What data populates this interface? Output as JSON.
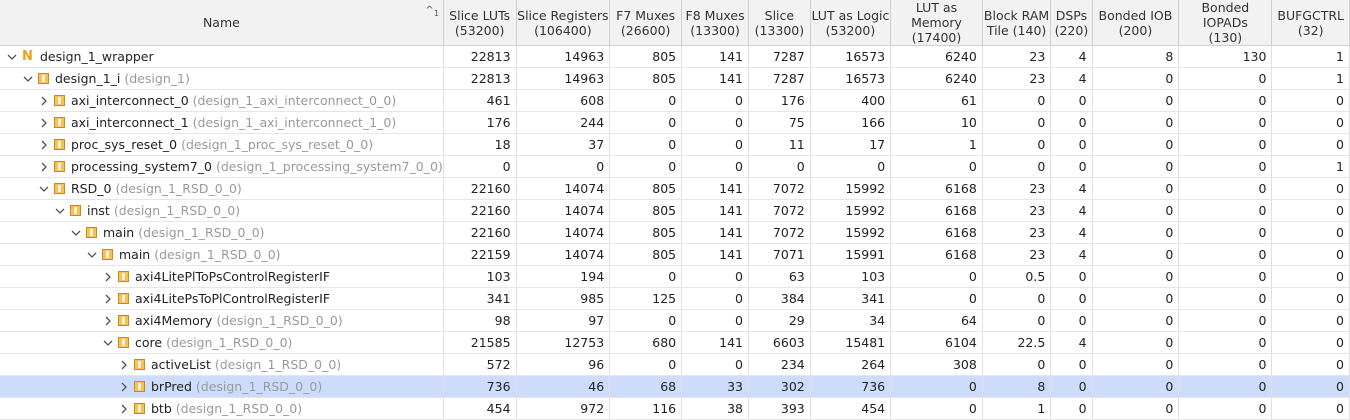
{
  "header": {
    "name": "Name",
    "sort_indicator": "^",
    "sort_rank": "1",
    "columns": [
      {
        "line1": "Slice LUTs",
        "line2": "(53200)"
      },
      {
        "line1": "Slice Registers",
        "line2": "(106400)"
      },
      {
        "line1": "F7 Muxes",
        "line2": "(26600)"
      },
      {
        "line1": "F8 Muxes",
        "line2": "(13300)"
      },
      {
        "line1": "Slice",
        "line2": "(13300)"
      },
      {
        "line1": "LUT as Logic",
        "line2": "(53200)"
      },
      {
        "line1": "LUT as Memory",
        "line2": "(17400)"
      },
      {
        "line1": "Block RAM",
        "line2": "Tile (140)"
      },
      {
        "line1": "DSPs",
        "line2": "(220)"
      },
      {
        "line1": "Bonded IOB",
        "line2": "(200)"
      },
      {
        "line1": "Bonded IOPADs",
        "line2": "(130)"
      },
      {
        "line1": "BUFGCTRL",
        "line2": "(32)"
      }
    ]
  },
  "rows": [
    {
      "name": "design_1_wrapper",
      "module": "",
      "values": [
        "22813",
        "14963",
        "805",
        "141",
        "7287",
        "16573",
        "6240",
        "23",
        "4",
        "8",
        "130",
        "1"
      ]
    },
    {
      "name": "design_1_i",
      "module": "(design_1)",
      "values": [
        "22813",
        "14963",
        "805",
        "141",
        "7287",
        "16573",
        "6240",
        "23",
        "4",
        "0",
        "0",
        "1"
      ]
    },
    {
      "name": "axi_interconnect_0",
      "module": "(design_1_axi_interconnect_0_0)",
      "values": [
        "461",
        "608",
        "0",
        "0",
        "176",
        "400",
        "61",
        "0",
        "0",
        "0",
        "0",
        "0"
      ]
    },
    {
      "name": "axi_interconnect_1",
      "module": "(design_1_axi_interconnect_1_0)",
      "values": [
        "176",
        "244",
        "0",
        "0",
        "75",
        "166",
        "10",
        "0",
        "0",
        "0",
        "0",
        "0"
      ]
    },
    {
      "name": "proc_sys_reset_0",
      "module": "(design_1_proc_sys_reset_0_0)",
      "values": [
        "18",
        "37",
        "0",
        "0",
        "11",
        "17",
        "1",
        "0",
        "0",
        "0",
        "0",
        "0"
      ]
    },
    {
      "name": "processing_system7_0",
      "module": "(design_1_processing_system7_0_0)",
      "values": [
        "0",
        "0",
        "0",
        "0",
        "0",
        "0",
        "0",
        "0",
        "0",
        "0",
        "0",
        "1"
      ]
    },
    {
      "name": "RSD_0",
      "module": "(design_1_RSD_0_0)",
      "values": [
        "22160",
        "14074",
        "805",
        "141",
        "7072",
        "15992",
        "6168",
        "23",
        "4",
        "0",
        "0",
        "0"
      ]
    },
    {
      "name": "inst",
      "module": "(design_1_RSD_0_0)",
      "values": [
        "22160",
        "14074",
        "805",
        "141",
        "7072",
        "15992",
        "6168",
        "23",
        "4",
        "0",
        "0",
        "0"
      ]
    },
    {
      "name": "main",
      "module": "(design_1_RSD_0_0)",
      "values": [
        "22160",
        "14074",
        "805",
        "141",
        "7072",
        "15992",
        "6168",
        "23",
        "4",
        "0",
        "0",
        "0"
      ]
    },
    {
      "name": "main",
      "module": "(design_1_RSD_0_0)",
      "values": [
        "22159",
        "14074",
        "805",
        "141",
        "7071",
        "15991",
        "6168",
        "23",
        "4",
        "0",
        "0",
        "0"
      ]
    },
    {
      "name": "axi4LitePlToPsControlRegisterIF",
      "module": "",
      "values": [
        "103",
        "194",
        "0",
        "0",
        "63",
        "103",
        "0",
        "0.5",
        "0",
        "0",
        "0",
        "0"
      ]
    },
    {
      "name": "axi4LitePsToPlControlRegisterIF",
      "module": "",
      "values": [
        "341",
        "985",
        "125",
        "0",
        "384",
        "341",
        "0",
        "0",
        "0",
        "0",
        "0",
        "0"
      ]
    },
    {
      "name": "axi4Memory",
      "module": "(design_1_RSD_0_0)",
      "values": [
        "98",
        "97",
        "0",
        "0",
        "29",
        "34",
        "64",
        "0",
        "0",
        "0",
        "0",
        "0"
      ]
    },
    {
      "name": "core",
      "module": "(design_1_RSD_0_0)",
      "values": [
        "21585",
        "12753",
        "680",
        "141",
        "6603",
        "15481",
        "6104",
        "22.5",
        "4",
        "0",
        "0",
        "0"
      ]
    },
    {
      "name": "activeList",
      "module": "(design_1_RSD_0_0)",
      "values": [
        "572",
        "96",
        "0",
        "0",
        "234",
        "264",
        "308",
        "0",
        "0",
        "0",
        "0",
        "0"
      ]
    },
    {
      "name": "brPred",
      "module": "(design_1_RSD_0_0)",
      "values": [
        "736",
        "46",
        "68",
        "33",
        "302",
        "736",
        "0",
        "8",
        "0",
        "0",
        "0",
        "0"
      ]
    },
    {
      "name": "btb",
      "module": "(design_1_RSD_0_0)",
      "values": [
        "454",
        "972",
        "116",
        "38",
        "393",
        "454",
        "0",
        "1",
        "0",
        "0",
        "0",
        "0"
      ]
    }
  ],
  "tree": {
    "depths": [
      0,
      1,
      2,
      2,
      2,
      2,
      2,
      3,
      4,
      5,
      6,
      6,
      6,
      6,
      7,
      7,
      7
    ],
    "expanded": [
      true,
      true,
      false,
      false,
      false,
      false,
      true,
      true,
      true,
      true,
      false,
      false,
      false,
      true,
      false,
      false,
      false
    ],
    "top_icon_char": "N",
    "selected_row": 15
  },
  "colors": {
    "selection": "#cddcfa",
    "module_text": "#9a9a9a",
    "icon_fill": "#f7c15a",
    "icon_border": "#c98a22",
    "header_bg": "#f2f2f2"
  },
  "icons": {
    "expanded": "chevron-down-icon",
    "collapsed": "chevron-right-icon",
    "top": "netlist-top-icon",
    "instance": "instance-icon"
  }
}
